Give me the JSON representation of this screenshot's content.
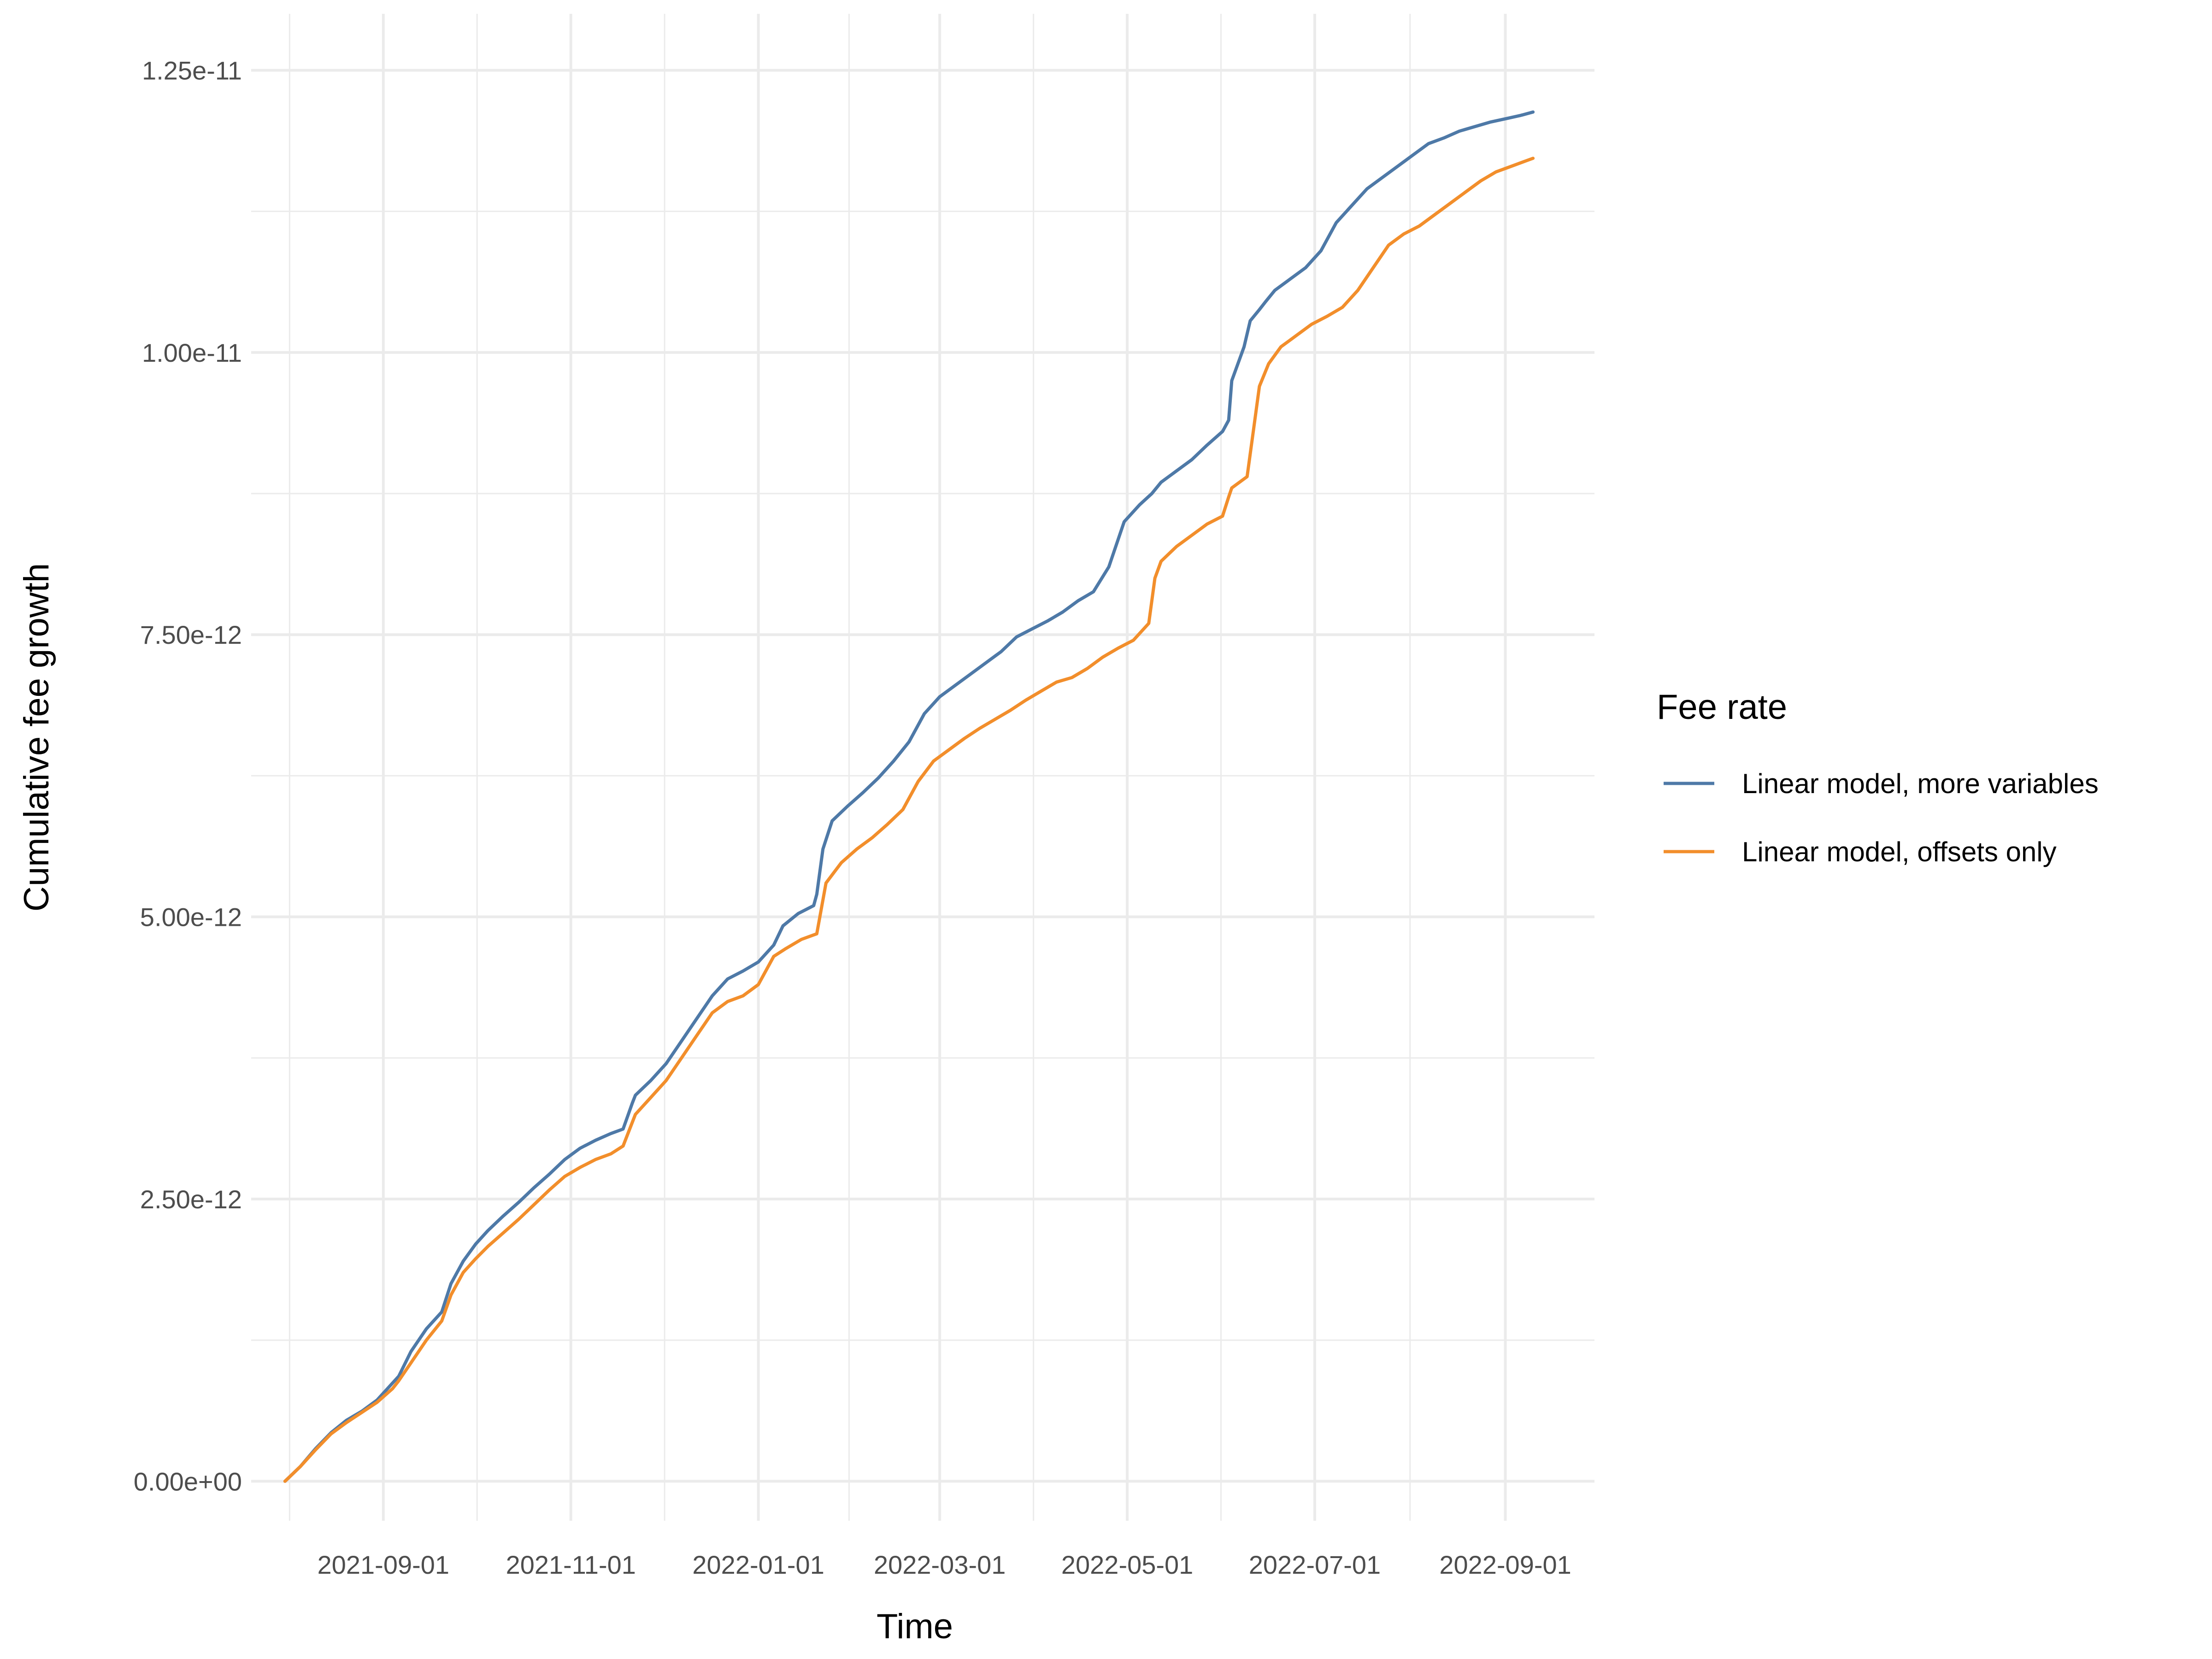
{
  "chart_data": {
    "type": "line",
    "xlabel": "Time",
    "ylabel": "Cumulative fee growth",
    "x_tick_labels": [
      "2021-09-01",
      "2021-11-01",
      "2022-01-01",
      "2022-03-01",
      "2022-05-01",
      "2022-07-01",
      "2022-09-01"
    ],
    "y_tick_labels": [
      "0.00e+00",
      "2.50e-12",
      "5.00e-12",
      "7.50e-12",
      "1.00e-11",
      "1.25e-11"
    ],
    "y_ticks": [
      0,
      2.5e-12,
      5e-12,
      7.5e-12,
      1e-11,
      1.25e-11
    ],
    "xlim": [
      "2021-07-20",
      "2022-09-30"
    ],
    "ylim": [
      -3.5e-13,
      1.3e-11
    ],
    "grid": true,
    "legend": {
      "title": "Fee rate",
      "placement": "right"
    },
    "series": [
      {
        "name": "Linear model, more variables",
        "color": "#4e79a7",
        "x": [
          "2021-07-31",
          "2021-08-05",
          "2021-08-10",
          "2021-08-15",
          "2021-08-20",
          "2021-08-25",
          "2021-08-30",
          "2021-09-04",
          "2021-09-06",
          "2021-09-10",
          "2021-09-15",
          "2021-09-20",
          "2021-09-23",
          "2021-09-27",
          "2021-10-01",
          "2021-10-05",
          "2021-10-10",
          "2021-10-15",
          "2021-10-20",
          "2021-10-25",
          "2021-10-30",
          "2021-11-04",
          "2021-11-09",
          "2021-11-14",
          "2021-11-18",
          "2021-11-21",
          "2021-11-22",
          "2021-11-27",
          "2021-12-02",
          "2021-12-07",
          "2021-12-12",
          "2021-12-17",
          "2021-12-22",
          "2021-12-27",
          "2022-01-01",
          "2022-01-06",
          "2022-01-09",
          "2022-01-14",
          "2022-01-19",
          "2022-01-20",
          "2022-01-22",
          "2022-01-25",
          "2022-01-30",
          "2022-02-04",
          "2022-02-09",
          "2022-02-14",
          "2022-02-19",
          "2022-02-24",
          "2022-03-01",
          "2022-03-06",
          "2022-03-11",
          "2022-03-16",
          "2022-03-21",
          "2022-03-26",
          "2022-03-31",
          "2022-04-05",
          "2022-04-10",
          "2022-04-15",
          "2022-04-20",
          "2022-04-25",
          "2022-04-30",
          "2022-05-05",
          "2022-05-09",
          "2022-05-12",
          "2022-05-17",
          "2022-05-22",
          "2022-05-27",
          "2022-06-01",
          "2022-06-03",
          "2022-06-04",
          "2022-06-08",
          "2022-06-10",
          "2022-06-13",
          "2022-06-15",
          "2022-06-18",
          "2022-06-23",
          "2022-06-28",
          "2022-07-03",
          "2022-07-08",
          "2022-07-13",
          "2022-07-18",
          "2022-07-23",
          "2022-07-28",
          "2022-08-02",
          "2022-08-07",
          "2022-08-12",
          "2022-08-17",
          "2022-08-22",
          "2022-08-27",
          "2022-09-01",
          "2022-09-06",
          "2022-09-10"
        ],
        "y": [
          0,
          1.3e-13,
          2.9e-13,
          4.3e-13,
          5.4e-13,
          6.2e-13,
          7.2e-13,
          8.7e-13,
          9.3e-13,
          1.15e-12,
          1.35e-12,
          1.5e-12,
          1.75e-12,
          1.95e-12,
          2.1e-12,
          2.22e-12,
          2.35e-12,
          2.47e-12,
          2.6e-12,
          2.72e-12,
          2.85e-12,
          2.95e-12,
          3.02e-12,
          3.08e-12,
          3.12e-12,
          3.35e-12,
          3.42e-12,
          3.55e-12,
          3.7e-12,
          3.9e-12,
          4.1e-12,
          4.3e-12,
          4.45e-12,
          4.52e-12,
          4.6e-12,
          4.75e-12,
          4.92e-12,
          5.03e-12,
          5.1e-12,
          5.2e-12,
          5.6e-12,
          5.85e-12,
          5.98e-12,
          6.1e-12,
          6.23e-12,
          6.38e-12,
          6.55e-12,
          6.8e-12,
          6.95e-12,
          7.05e-12,
          7.15e-12,
          7.25e-12,
          7.35e-12,
          7.48e-12,
          7.55e-12,
          7.62e-12,
          7.7e-12,
          7.8e-12,
          7.88e-12,
          8.1e-12,
          8.5e-12,
          8.65e-12,
          8.75e-12,
          8.85e-12,
          8.95e-12,
          9.05e-12,
          9.18e-12,
          9.3e-12,
          9.4e-12,
          9.75e-12,
          1.005e-11,
          1.028e-11,
          1.038e-11,
          1.045e-11,
          1.055e-11,
          1.065e-11,
          1.075e-11,
          1.09e-11,
          1.115e-11,
          1.13e-11,
          1.145e-11,
          1.155e-11,
          1.165e-11,
          1.175e-11,
          1.185e-11,
          1.19e-11,
          1.196e-11,
          1.2e-11,
          1.204e-11,
          1.207e-11,
          1.21e-11,
          1.213e-11
        ]
      },
      {
        "name": "Linear model, offsets only",
        "color": "#f28e2b",
        "x": [
          "2021-07-31",
          "2021-08-05",
          "2021-08-10",
          "2021-08-15",
          "2021-08-20",
          "2021-08-25",
          "2021-08-30",
          "2021-09-04",
          "2021-09-06",
          "2021-09-10",
          "2021-09-15",
          "2021-09-20",
          "2021-09-23",
          "2021-09-27",
          "2021-10-01",
          "2021-10-05",
          "2021-10-10",
          "2021-10-15",
          "2021-10-20",
          "2021-10-25",
          "2021-10-30",
          "2021-11-04",
          "2021-11-09",
          "2021-11-14",
          "2021-11-18",
          "2021-11-22",
          "2021-11-27",
          "2021-12-02",
          "2021-12-07",
          "2021-12-12",
          "2021-12-17",
          "2021-12-22",
          "2021-12-27",
          "2022-01-01",
          "2022-01-06",
          "2022-01-10",
          "2022-01-15",
          "2022-01-20",
          "2022-01-23",
          "2022-01-28",
          "2022-02-02",
          "2022-02-07",
          "2022-02-12",
          "2022-02-17",
          "2022-02-22",
          "2022-02-27",
          "2022-03-04",
          "2022-03-09",
          "2022-03-14",
          "2022-03-19",
          "2022-03-24",
          "2022-03-29",
          "2022-04-03",
          "2022-04-08",
          "2022-04-13",
          "2022-04-18",
          "2022-04-23",
          "2022-04-28",
          "2022-05-03",
          "2022-05-08",
          "2022-05-10",
          "2022-05-12",
          "2022-05-17",
          "2022-05-22",
          "2022-05-27",
          "2022-06-01",
          "2022-06-03",
          "2022-06-04",
          "2022-06-09",
          "2022-06-11",
          "2022-06-13",
          "2022-06-16",
          "2022-06-20",
          "2022-06-25",
          "2022-06-30",
          "2022-07-05",
          "2022-07-10",
          "2022-07-15",
          "2022-07-20",
          "2022-07-25",
          "2022-07-30",
          "2022-08-04",
          "2022-08-09",
          "2022-08-14",
          "2022-08-19",
          "2022-08-24",
          "2022-08-29",
          "2022-09-03",
          "2022-09-08",
          "2022-09-10"
        ],
        "y": [
          0,
          1.3e-13,
          2.8e-13,
          4.2e-13,
          5.2e-13,
          6.1e-13,
          7e-13,
          8.2e-13,
          8.9e-13,
          1.05e-12,
          1.25e-12,
          1.42e-12,
          1.65e-12,
          1.85e-12,
          1.97e-12,
          2.08e-12,
          2.2e-12,
          2.32e-12,
          2.45e-12,
          2.58e-12,
          2.7e-12,
          2.78e-12,
          2.85e-12,
          2.9e-12,
          2.97e-12,
          3.25e-12,
          3.4e-12,
          3.55e-12,
          3.75e-12,
          3.95e-12,
          4.15e-12,
          4.25e-12,
          4.3e-12,
          4.4e-12,
          4.65e-12,
          4.72e-12,
          4.8e-12,
          4.85e-12,
          5.3e-12,
          5.48e-12,
          5.6e-12,
          5.7e-12,
          5.82e-12,
          5.95e-12,
          6.2e-12,
          6.38e-12,
          6.48e-12,
          6.58e-12,
          6.67e-12,
          6.75e-12,
          6.83e-12,
          6.92e-12,
          7e-12,
          7.08e-12,
          7.12e-12,
          7.2e-12,
          7.3e-12,
          7.38e-12,
          7.45e-12,
          7.6e-12,
          8e-12,
          8.15e-12,
          8.28e-12,
          8.38e-12,
          8.48e-12,
          8.55e-12,
          8.72e-12,
          8.8e-12,
          8.9e-12,
          9.3e-12,
          9.7e-12,
          9.9e-12,
          1.005e-11,
          1.015e-11,
          1.025e-11,
          1.032e-11,
          1.04e-11,
          1.055e-11,
          1.075e-11,
          1.095e-11,
          1.105e-11,
          1.112e-11,
          1.122e-11,
          1.132e-11,
          1.142e-11,
          1.152e-11,
          1.16e-11,
          1.165e-11,
          1.17e-11,
          1.172e-11
        ]
      }
    ]
  }
}
